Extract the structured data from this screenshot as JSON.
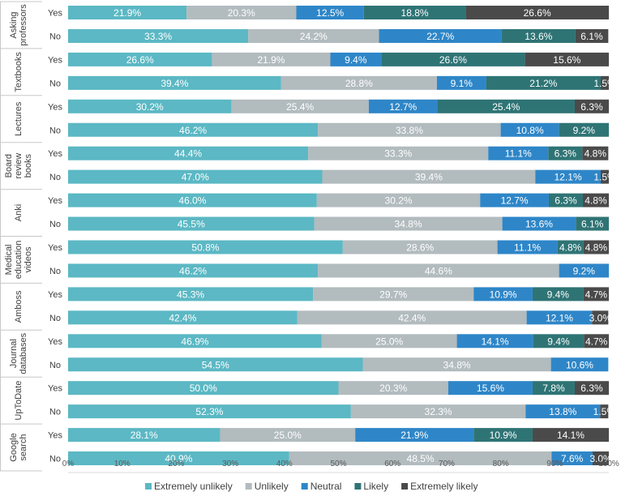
{
  "chart_data": {
    "type": "bar",
    "orientation": "horizontal-stacked-100",
    "xlim": [
      0,
      100
    ],
    "ticks": [
      "0%",
      "10%",
      "20%",
      "30%",
      "40%",
      "50%",
      "60%",
      "70%",
      "80%",
      "90%",
      "100%"
    ],
    "legend_position": "bottom",
    "series": [
      {
        "name": "Extremely unlikely",
        "color": "#5bb8c4"
      },
      {
        "name": "Unlikely",
        "color": "#b2bbbe"
      },
      {
        "name": "Neutral",
        "color": "#2e86c8"
      },
      {
        "name": "Likely",
        "color": "#2f7475"
      },
      {
        "name": "Extremely likely",
        "color": "#4a4a4a"
      }
    ],
    "groups": [
      {
        "name": [
          "Asking",
          "professors"
        ],
        "rows": [
          {
            "answer": "Yes",
            "values": [
              21.9,
              20.3,
              12.5,
              18.8,
              26.6
            ],
            "labels": [
              "21.9%",
              "20.3%",
              "12.5%",
              "18.8%",
              "26.6%"
            ]
          },
          {
            "answer": "No",
            "values": [
              33.3,
              24.2,
              22.7,
              13.6,
              6.1
            ],
            "labels": [
              "33.3%",
              "24.2%",
              "22.7%",
              "13.6%",
              "6.1%"
            ]
          }
        ]
      },
      {
        "name": [
          "Textbooks"
        ],
        "rows": [
          {
            "answer": "Yes",
            "values": [
              26.6,
              21.9,
              9.4,
              26.6,
              15.6
            ],
            "labels": [
              "26.6%",
              "21.9%",
              "9.4%",
              "26.6%",
              "15.6%"
            ]
          },
          {
            "answer": "No",
            "values": [
              39.4,
              28.8,
              9.1,
              21.2,
              1.5
            ],
            "labels": [
              "39.4%",
              "28.8%",
              "9.1%",
              "21.2%",
              "1.5%"
            ]
          }
        ]
      },
      {
        "name": [
          "Lectures"
        ],
        "rows": [
          {
            "answer": "Yes",
            "values": [
              30.2,
              25.4,
              12.7,
              25.4,
              6.3
            ],
            "labels": [
              "30.2%",
              "25.4%",
              "12.7%",
              "25.4%",
              "6.3%"
            ]
          },
          {
            "answer": "No",
            "values": [
              46.2,
              33.8,
              10.8,
              9.2,
              0
            ],
            "labels": [
              "46.2%",
              "33.8%",
              "10.8%",
              "9.2%",
              ""
            ]
          }
        ]
      },
      {
        "name": [
          "Board",
          "review",
          "books"
        ],
        "rows": [
          {
            "answer": "Yes",
            "values": [
              44.4,
              33.3,
              11.1,
              6.3,
              4.8
            ],
            "labels": [
              "44.4%",
              "33.3%",
              "11.1%",
              "6.3%",
              "4.8%"
            ]
          },
          {
            "answer": "No",
            "values": [
              47.0,
              39.4,
              12.1,
              0,
              1.5
            ],
            "labels": [
              "47.0%",
              "39.4%",
              "12.1%",
              "",
              "1.5%"
            ]
          }
        ]
      },
      {
        "name": [
          "Anki"
        ],
        "rows": [
          {
            "answer": "Yes",
            "values": [
              46.0,
              30.2,
              12.7,
              6.3,
              4.8
            ],
            "labels": [
              "46.0%",
              "30.2%",
              "12.7%",
              "6.3%",
              "4.8%"
            ]
          },
          {
            "answer": "No",
            "values": [
              45.5,
              34.8,
              13.6,
              6.1,
              0
            ],
            "labels": [
              "45.5%",
              "34.8%",
              "13.6%",
              "6.1%",
              ""
            ]
          }
        ]
      },
      {
        "name": [
          "Medical",
          "education",
          "videos"
        ],
        "rows": [
          {
            "answer": "Yes",
            "values": [
              50.8,
              28.6,
              11.1,
              4.8,
              4.8
            ],
            "labels": [
              "50.8%",
              "28.6%",
              "11.1%",
              "4.8%",
              "4.8%"
            ]
          },
          {
            "answer": "No",
            "values": [
              46.2,
              44.6,
              9.2,
              0,
              0
            ],
            "labels": [
              "46.2%",
              "44.6%",
              "9.2%",
              "",
              ""
            ]
          }
        ]
      },
      {
        "name": [
          "Amboss"
        ],
        "rows": [
          {
            "answer": "Yes",
            "values": [
              45.3,
              29.7,
              10.9,
              9.4,
              4.7
            ],
            "labels": [
              "45.3%",
              "29.7%",
              "10.9%",
              "9.4%",
              "4.7%"
            ]
          },
          {
            "answer": "No",
            "values": [
              42.4,
              42.4,
              12.1,
              0,
              3.0
            ],
            "labels": [
              "42.4%",
              "42.4%",
              "12.1%",
              "",
              "3.0%"
            ]
          }
        ]
      },
      {
        "name": [
          "Journal",
          "databases"
        ],
        "rows": [
          {
            "answer": "Yes",
            "values": [
              46.9,
              25.0,
              14.1,
              9.4,
              4.7
            ],
            "labels": [
              "46.9%",
              "25.0%",
              "14.1%",
              "9.4%",
              "4.7%"
            ]
          },
          {
            "answer": "No",
            "values": [
              54.5,
              34.8,
              10.6,
              0,
              0
            ],
            "labels": [
              "54.5%",
              "34.8%",
              "10.6%",
              "",
              ""
            ]
          }
        ]
      },
      {
        "name": [
          "UpToDate"
        ],
        "rows": [
          {
            "answer": "Yes",
            "values": [
              50.0,
              20.3,
              15.6,
              7.8,
              6.3
            ],
            "labels": [
              "50.0%",
              "20.3%",
              "15.6%",
              "7.8%",
              "6.3%"
            ]
          },
          {
            "answer": "No",
            "values": [
              52.3,
              32.3,
              13.8,
              0,
              1.5
            ],
            "labels": [
              "52.3%",
              "32.3%",
              "13.8%",
              "",
              "1.5%"
            ]
          }
        ]
      },
      {
        "name": [
          "Google",
          "search"
        ],
        "rows": [
          {
            "answer": "Yes",
            "values": [
              28.1,
              25.0,
              21.9,
              10.9,
              14.1
            ],
            "labels": [
              "28.1%",
              "25.0%",
              "21.9%",
              "10.9%",
              "14.1%"
            ]
          },
          {
            "answer": "No",
            "values": [
              40.9,
              48.5,
              7.6,
              0,
              3.0
            ],
            "labels": [
              "40.9%",
              "48.5%",
              "7.6%",
              "",
              "3.0%"
            ]
          }
        ]
      }
    ]
  }
}
